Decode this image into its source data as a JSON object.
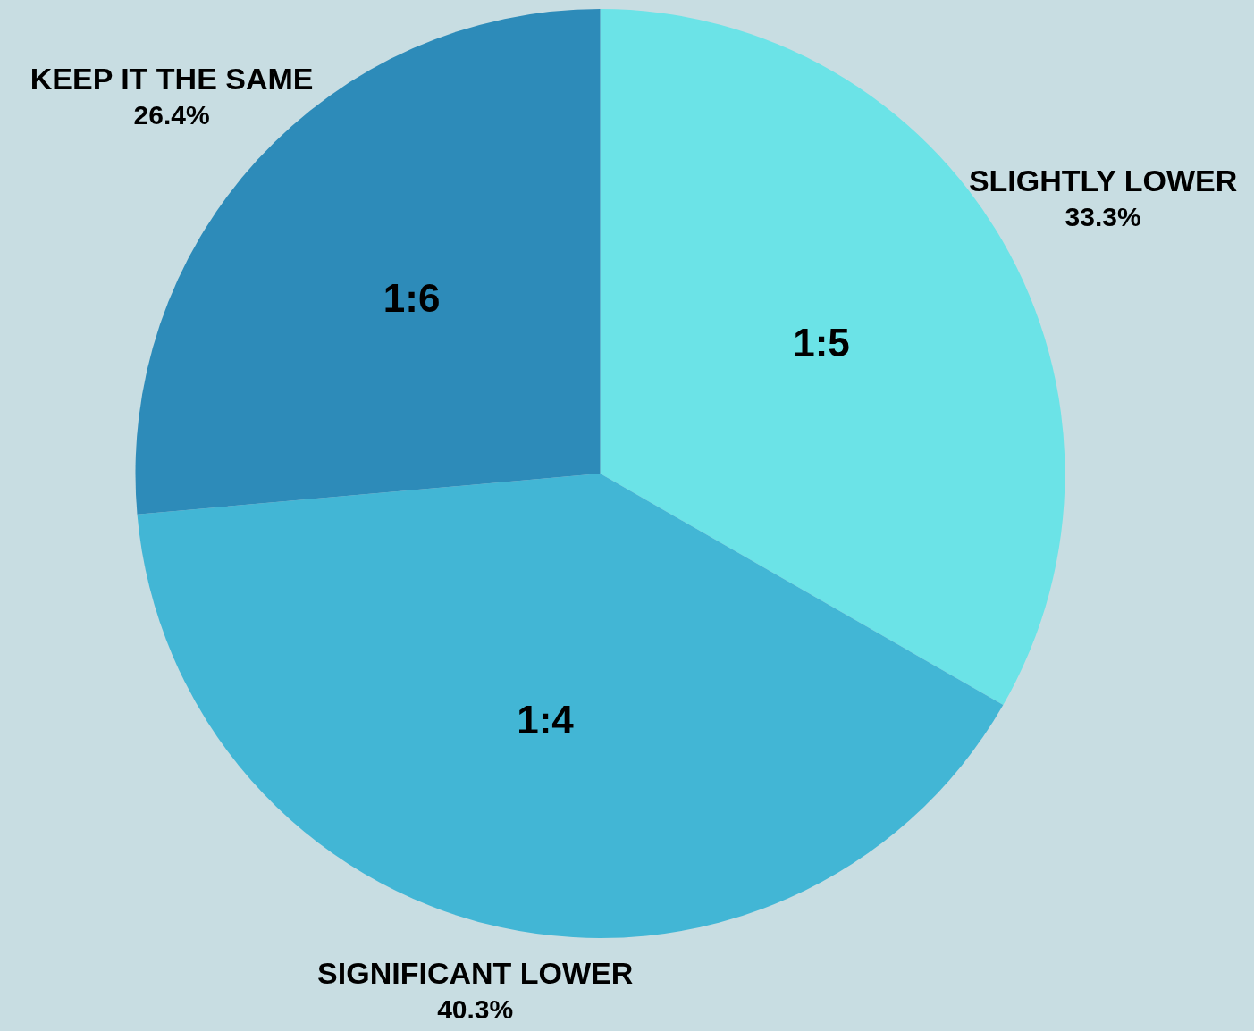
{
  "chart_data": {
    "type": "pie",
    "categories": [
      "SLIGHTLY LOWER",
      "SIGNIFICANT LOWER",
      "KEEP IT THE SAME"
    ],
    "values": [
      33.3,
      40.3,
      26.4
    ],
    "colors": [
      "#6be3e7",
      "#42b6d5",
      "#2d8bb9"
    ],
    "value_labels": [
      "33.3%",
      "40.3%",
      "26.4%"
    ],
    "annotations": [
      "1:5",
      "1:4",
      "1:6"
    ]
  }
}
